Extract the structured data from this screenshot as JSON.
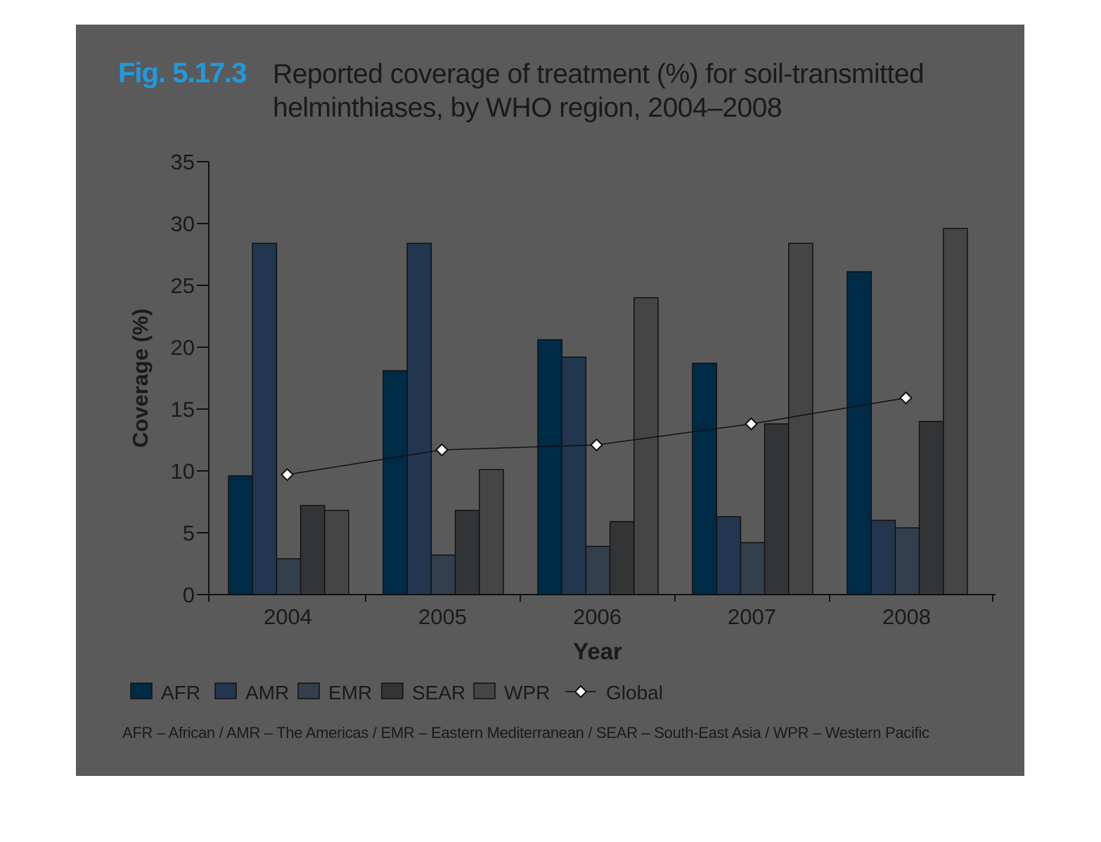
{
  "figure": {
    "label": "Fig. 5.17.3",
    "title_line1": "Reported coverage of treatment (%) for soil-transmitted",
    "title_line2": "helminthiases, by WHO region, 2004–2008",
    "footnote": "AFR – African / AMR – The Americas / EMR – Eastern Mediterranean / SEAR – South-East Asia / WPR – Western Pacific"
  },
  "colors": {
    "panel_bg": "#5a5a5a",
    "AFR": "#002b46",
    "AMR": "#22364f",
    "EMR": "#333f4d",
    "SEAR": "#333436",
    "WPR": "#454546",
    "Global": "#111111",
    "highlight": "#1e9be0"
  },
  "chart_data": {
    "type": "bar",
    "categories": [
      "2004",
      "2005",
      "2006",
      "2007",
      "2008"
    ],
    "series": [
      {
        "name": "AFR",
        "values": [
          9.6,
          18.1,
          20.6,
          18.7,
          26.1
        ]
      },
      {
        "name": "AMR",
        "values": [
          28.4,
          28.4,
          19.2,
          6.3,
          6.0
        ]
      },
      {
        "name": "EMR",
        "values": [
          2.9,
          3.2,
          3.9,
          4.2,
          5.4
        ]
      },
      {
        "name": "SEAR",
        "values": [
          7.2,
          6.8,
          5.9,
          13.8,
          14.0
        ]
      },
      {
        "name": "WPR",
        "values": [
          6.8,
          10.1,
          24.0,
          28.4,
          29.6
        ]
      }
    ],
    "line_series": {
      "name": "Global",
      "type": "line",
      "marker": "diamond",
      "values": [
        9.7,
        11.7,
        12.1,
        13.8,
        15.9
      ]
    },
    "xlabel": "Year",
    "ylabel": "Coverage (%)",
    "ylim": [
      0,
      35
    ],
    "yticks": [
      0,
      5,
      10,
      15,
      20,
      25,
      30,
      35
    ],
    "grid": false,
    "legend_position": "bottom"
  }
}
